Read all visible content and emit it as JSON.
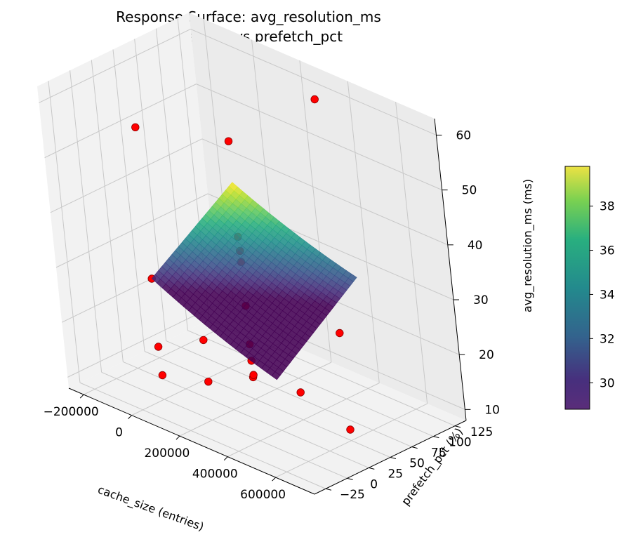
{
  "chart_data": {
    "type": "surface3d",
    "title": "Response Surface: avg_resolution_ms",
    "subtitle": "cache_size vs prefetch_pct",
    "xlabel": "cache_size (entries)",
    "ylabel": "prefetch_pct (%)",
    "zlabel": "avg_resolution_ms (ms)",
    "x_ticks": [
      -200000,
      0,
      200000,
      400000,
      600000
    ],
    "x_tick_labels": [
      "−200000",
      "0",
      "200000",
      "400000",
      "600000"
    ],
    "y_ticks": [
      -25,
      0,
      25,
      50,
      75,
      100,
      125
    ],
    "y_tick_labels": [
      "−25",
      "0",
      "25",
      "50",
      "75",
      "100",
      "125"
    ],
    "z_ticks": [
      10,
      20,
      30,
      40,
      50,
      60
    ],
    "z_tick_labels": [
      "10",
      "20",
      "30",
      "40",
      "50",
      "60"
    ],
    "xlim": [
      -262000,
      762000
    ],
    "ylim": [
      -38,
      138
    ],
    "zlim": [
      8,
      63
    ],
    "grid": true,
    "surface": {
      "x_range": [
        0,
        500000
      ],
      "y_range": [
        0,
        100
      ],
      "colormap": "viridis",
      "z_corners": {
        "x0_y0": 30,
        "x1_y0": 21,
        "x0_y1": 39.9,
        "x1_y1": 32
      }
    },
    "colorbar": {
      "ticks": [
        30,
        32,
        34,
        36,
        38
      ],
      "tick_labels": [
        "30",
        "32",
        "34",
        "36",
        "38"
      ],
      "range": [
        28.8,
        39.8
      ]
    },
    "points": [
      {
        "x": -200000,
        "y": 50,
        "z": 50
      },
      {
        "x": 200000,
        "y": 50,
        "z": 55
      },
      {
        "x": 200000,
        "y": 150,
        "z": 55
      },
      {
        "x": 0,
        "y": 0,
        "z": 30
      },
      {
        "x": 0,
        "y": 100,
        "z": 30
      },
      {
        "x": 200000,
        "y": -50,
        "z": 20
      },
      {
        "x": -200000,
        "y": 50,
        "z": 10
      },
      {
        "x": 400000,
        "y": 0,
        "z": 20
      },
      {
        "x": 400000,
        "y": 100,
        "z": 20
      },
      {
        "x": 600000,
        "y": 50,
        "z": 10
      },
      {
        "x": 200000,
        "y": 50,
        "z": 35
      },
      {
        "x": 200000,
        "y": 50,
        "z": 33
      },
      {
        "x": 200000,
        "y": 50,
        "z": 25
      },
      {
        "x": 200000,
        "y": 50,
        "z": 18
      },
      {
        "x": 200000,
        "y": 50,
        "z": 15
      },
      {
        "x": 200000,
        "y": 50,
        "z": 12
      },
      {
        "x": 200000,
        "y": 0,
        "z": 15
      },
      {
        "x": 0,
        "y": 50,
        "z": 15
      },
      {
        "x": 400000,
        "y": 50,
        "z": 13
      }
    ]
  }
}
